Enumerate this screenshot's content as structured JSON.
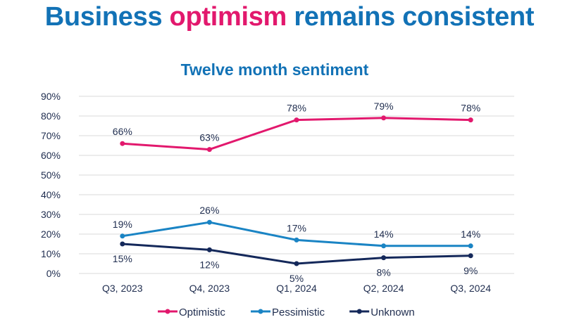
{
  "title": {
    "part1": "Business ",
    "highlight": "optimism",
    "part2": " remains consistent"
  },
  "colors": {
    "title": "#1272b6",
    "highlight": "#e2186d"
  },
  "chart_data": {
    "type": "line",
    "title": "Twelve month sentiment",
    "xlabel": "",
    "ylabel": "",
    "categories": [
      "Q3, 2023",
      "Q4, 2023",
      "Q1, 2024",
      "Q2, 2024",
      "Q3, 2024"
    ],
    "ylim": [
      0,
      90
    ],
    "yticks": [
      "0%",
      "10%",
      "20%",
      "30%",
      "40%",
      "50%",
      "60%",
      "70%",
      "80%",
      "90%"
    ],
    "grid": true,
    "legend": "bottom",
    "series": [
      {
        "name": "Optimistic",
        "color": "#e2186d",
        "values": [
          66,
          63,
          78,
          79,
          78
        ],
        "labels": [
          "66%",
          "63%",
          "78%",
          "79%",
          "78%"
        ],
        "label_pos": "above"
      },
      {
        "name": "Pessimistic",
        "color": "#1a84c4",
        "values": [
          19,
          26,
          17,
          14,
          14
        ],
        "labels": [
          "19%",
          "26%",
          "17%",
          "14%",
          "14%"
        ],
        "label_pos": "above"
      },
      {
        "name": "Unknown",
        "color": "#14285a",
        "values": [
          15,
          12,
          5,
          8,
          9
        ],
        "labels": [
          "15%",
          "12%",
          "5%",
          "8%",
          "9%"
        ],
        "label_pos": "below"
      }
    ]
  }
}
